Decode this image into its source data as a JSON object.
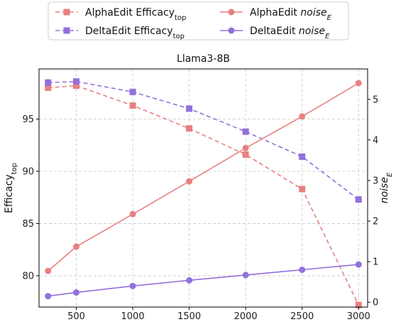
{
  "chart_data": {
    "type": "line",
    "title": "Llama3-8B",
    "x": [
      250,
      500,
      1000,
      1500,
      2000,
      2500,
      3000
    ],
    "x_ticks": [
      500,
      1000,
      1500,
      2000,
      2500,
      3000
    ],
    "xlim": [
      170,
      3080
    ],
    "y_left": {
      "label": "Efficacy",
      "label_subscript": "top",
      "ticks": [
        80,
        85,
        90,
        95
      ],
      "lim": [
        77.0,
        99.8
      ]
    },
    "y_right": {
      "label": "noise",
      "label_subscript": "E",
      "ticks": [
        0,
        1,
        2,
        3,
        4,
        5
      ],
      "lim": [
        -0.12,
        5.75
      ]
    },
    "grid": true,
    "legend_placement": "top",
    "series": [
      {
        "name": "AlphaEdit Efficacy",
        "name_subscript": "top",
        "name_italic": false,
        "axis": "left",
        "color": "#e88080",
        "dashed": true,
        "marker": "square",
        "values": [
          98.0,
          98.2,
          96.3,
          94.1,
          91.6,
          88.3,
          77.2
        ]
      },
      {
        "name": "DeltaEdit Efficacy",
        "name_subscript": "top",
        "name_italic": false,
        "axis": "left",
        "color": "#9370db",
        "dashed": true,
        "marker": "square",
        "values": [
          98.5,
          98.6,
          97.6,
          96.0,
          93.8,
          91.4,
          87.3
        ]
      },
      {
        "name": "AlphaEdit noise",
        "name_subscript": "E",
        "name_italic": true,
        "axis": "right",
        "color": "#e88080",
        "dashed": false,
        "marker": "circle",
        "values": [
          0.77,
          1.37,
          2.17,
          2.98,
          3.8,
          4.58,
          5.4
        ]
      },
      {
        "name": "DeltaEdit noise",
        "name_subscript": "E",
        "name_italic": true,
        "axis": "right",
        "color": "#9370db",
        "dashed": false,
        "marker": "circle",
        "values": [
          0.15,
          0.24,
          0.4,
          0.54,
          0.67,
          0.8,
          0.93
        ]
      }
    ]
  }
}
